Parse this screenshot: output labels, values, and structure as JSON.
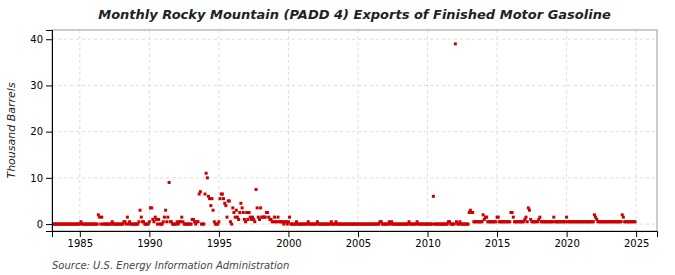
{
  "chart_data": {
    "type": "scatter",
    "title": "Monthly Rocky Mountain (PADD 4) Exports of Finished Motor Gasoline",
    "ylabel": "Thousand Barrels",
    "annotations": [
      "Source: U.S. Energy Information Administration"
    ],
    "color": "#cc0000",
    "marker": "square",
    "grid": true,
    "xlim": [
      1983.0,
      2026.5
    ],
    "ylim": [
      -1.5,
      42
    ],
    "xticks": [
      1985,
      1990,
      1995,
      2000,
      2005,
      2010,
      2015,
      2020,
      2025
    ],
    "yticks": [
      0,
      10,
      20,
      30,
      40
    ],
    "x": [
      1983.0,
      1983.08,
      1983.17,
      1983.25,
      1983.33,
      1983.42,
      1983.5,
      1983.58,
      1983.67,
      1983.75,
      1983.83,
      1983.92,
      1984.0,
      1984.08,
      1984.17,
      1984.25,
      1984.33,
      1984.42,
      1984.5,
      1984.58,
      1984.67,
      1984.75,
      1984.83,
      1984.92,
      1985.0,
      1985.08,
      1985.17,
      1985.25,
      1985.33,
      1985.42,
      1985.5,
      1985.58,
      1985.67,
      1985.75,
      1985.83,
      1985.92,
      1986.0,
      1986.08,
      1986.17,
      1986.25,
      1986.33,
      1986.42,
      1986.5,
      1986.58,
      1986.67,
      1986.75,
      1986.83,
      1986.92,
      1987.0,
      1987.08,
      1987.17,
      1987.25,
      1987.33,
      1987.42,
      1987.5,
      1987.58,
      1987.67,
      1987.75,
      1987.83,
      1987.92,
      1988.0,
      1988.08,
      1988.17,
      1988.25,
      1988.33,
      1988.42,
      1988.5,
      1988.58,
      1988.67,
      1988.75,
      1988.83,
      1988.92,
      1989.0,
      1989.08,
      1989.17,
      1989.25,
      1989.33,
      1989.42,
      1989.5,
      1989.58,
      1989.67,
      1989.75,
      1989.83,
      1989.92,
      1990.0,
      1990.08,
      1990.17,
      1990.25,
      1990.33,
      1990.42,
      1990.5,
      1990.58,
      1990.67,
      1990.75,
      1990.83,
      1990.92,
      1991.0,
      1991.08,
      1991.17,
      1991.25,
      1991.33,
      1991.42,
      1991.5,
      1991.58,
      1991.67,
      1991.75,
      1991.83,
      1991.92,
      1992.0,
      1992.08,
      1992.17,
      1992.25,
      1992.33,
      1992.42,
      1992.5,
      1992.58,
      1992.67,
      1992.75,
      1992.83,
      1992.92,
      1993.0,
      1993.08,
      1993.17,
      1993.25,
      1993.33,
      1993.42,
      1993.5,
      1993.58,
      1993.67,
      1993.75,
      1993.83,
      1993.92,
      1994.0,
      1994.08,
      1994.17,
      1994.25,
      1994.33,
      1994.42,
      1994.5,
      1994.58,
      1994.67,
      1994.75,
      1994.83,
      1994.92,
      1995.0,
      1995.08,
      1995.17,
      1995.25,
      1995.33,
      1995.42,
      1995.5,
      1995.58,
      1995.67,
      1995.75,
      1995.83,
      1995.92,
      1996.0,
      1996.08,
      1996.17,
      1996.25,
      1996.33,
      1996.42,
      1996.5,
      1996.58,
      1996.67,
      1996.75,
      1996.83,
      1996.92,
      1997.0,
      1997.08,
      1997.17,
      1997.25,
      1997.33,
      1997.42,
      1997.5,
      1997.58,
      1997.67,
      1997.75,
      1997.83,
      1997.92,
      1998.0,
      1998.08,
      1998.17,
      1998.25,
      1998.33,
      1998.42,
      1998.5,
      1998.58,
      1998.67,
      1998.75,
      1998.83,
      1998.92,
      1999.0,
      1999.08,
      1999.17,
      1999.25,
      1999.33,
      1999.42,
      1999.5,
      1999.58,
      1999.67,
      1999.75,
      1999.83,
      1999.92,
      2000.0,
      2000.08,
      2000.17,
      2000.25,
      2000.33,
      2000.42,
      2000.5,
      2000.58,
      2000.67,
      2000.75,
      2000.83,
      2000.92,
      2001.0,
      2001.08,
      2001.17,
      2001.25,
      2001.33,
      2001.42,
      2001.5,
      2001.58,
      2001.67,
      2001.75,
      2001.83,
      2001.92,
      2002.0,
      2002.08,
      2002.17,
      2002.25,
      2002.33,
      2002.42,
      2002.5,
      2002.58,
      2002.67,
      2002.75,
      2002.83,
      2002.92,
      2003.0,
      2003.08,
      2003.17,
      2003.25,
      2003.33,
      2003.42,
      2003.5,
      2003.58,
      2003.67,
      2003.75,
      2003.83,
      2003.92,
      2004.0,
      2004.08,
      2004.17,
      2004.25,
      2004.33,
      2004.42,
      2004.5,
      2004.58,
      2004.67,
      2004.75,
      2004.83,
      2004.92,
      2005.0,
      2005.08,
      2005.17,
      2005.25,
      2005.33,
      2005.42,
      2005.5,
      2005.58,
      2005.67,
      2005.75,
      2005.83,
      2005.92,
      2006.0,
      2006.08,
      2006.17,
      2006.25,
      2006.33,
      2006.42,
      2006.5,
      2006.58,
      2006.67,
      2006.75,
      2006.83,
      2006.92,
      2007.0,
      2007.08,
      2007.17,
      2007.25,
      2007.33,
      2007.42,
      2007.5,
      2007.58,
      2007.67,
      2007.75,
      2007.83,
      2007.92,
      2008.0,
      2008.08,
      2008.17,
      2008.25,
      2008.33,
      2008.42,
      2008.5,
      2008.58,
      2008.67,
      2008.75,
      2008.83,
      2008.92,
      2009.0,
      2009.08,
      2009.17,
      2009.25,
      2009.33,
      2009.42,
      2009.5,
      2009.58,
      2009.67,
      2009.75,
      2009.83,
      2009.92,
      2010.0,
      2010.08,
      2010.17,
      2010.25,
      2010.33,
      2010.42,
      2010.5,
      2010.58,
      2010.67,
      2010.75,
      2010.83,
      2010.92,
      2011.0,
      2011.08,
      2011.17,
      2011.25,
      2011.33,
      2011.42,
      2011.5,
      2011.58,
      2011.67,
      2011.75,
      2011.83,
      2011.92,
      2012.0,
      2012.08,
      2012.17,
      2012.25,
      2012.33,
      2012.42,
      2012.5,
      2012.58,
      2012.67,
      2012.75,
      2012.83,
      2012.92,
      2013.0,
      2013.08,
      2013.17,
      2013.25,
      2013.33,
      2013.42,
      2013.5,
      2013.58,
      2013.67,
      2013.75,
      2013.83,
      2013.92,
      2014.0,
      2014.08,
      2014.17,
      2014.25,
      2014.33,
      2014.42,
      2014.5,
      2014.58,
      2014.67,
      2014.75,
      2014.83,
      2014.92,
      2015.0,
      2015.08,
      2015.17,
      2015.25,
      2015.33,
      2015.42,
      2015.5,
      2015.58,
      2015.67,
      2015.75,
      2015.83,
      2015.92,
      2016.0,
      2016.08,
      2016.17,
      2016.25,
      2016.33,
      2016.42,
      2016.5,
      2016.58,
      2016.67,
      2016.75,
      2016.83,
      2016.92,
      2017.0,
      2017.08,
      2017.17,
      2017.25,
      2017.33,
      2017.42,
      2017.5,
      2017.58,
      2017.67,
      2017.75,
      2017.83,
      2017.92,
      2018.0,
      2018.08,
      2018.17,
      2018.25,
      2018.33,
      2018.42,
      2018.5,
      2018.58,
      2018.67,
      2018.75,
      2018.83,
      2018.92,
      2019.0,
      2019.08,
      2019.17,
      2019.25,
      2019.33,
      2019.42,
      2019.5,
      2019.58,
      2019.67,
      2019.75,
      2019.83,
      2019.92,
      2020.0,
      2020.08,
      2020.17,
      2020.25,
      2020.33,
      2020.42,
      2020.5,
      2020.58,
      2020.67,
      2020.75,
      2020.83,
      2020.92,
      2021.0,
      2021.08,
      2021.17,
      2021.25,
      2021.33,
      2021.42,
      2021.5,
      2021.58,
      2021.67,
      2021.75,
      2021.83,
      2021.92,
      2022.0,
      2022.08,
      2022.17,
      2022.25,
      2022.33,
      2022.42,
      2022.5,
      2022.58,
      2022.67,
      2022.75,
      2022.83,
      2022.92,
      2023.0,
      2023.08,
      2023.17,
      2023.25,
      2023.33,
      2023.42,
      2023.5,
      2023.58,
      2023.67,
      2023.75,
      2023.83,
      2023.92,
      2024.0,
      2024.08,
      2024.17,
      2024.25,
      2024.33,
      2024.42,
      2024.5,
      2024.58,
      2024.67,
      2024.75,
      2024.83,
      2024.92
    ],
    "values": [
      0,
      0,
      0,
      0,
      0,
      0,
      0,
      0,
      0,
      0,
      0,
      0,
      0,
      0,
      0,
      0,
      0,
      0,
      0,
      0,
      0,
      0,
      0,
      0,
      0,
      0.5,
      0,
      0,
      0,
      0,
      0,
      0,
      0,
      0,
      0,
      0,
      0,
      0,
      0,
      0,
      2.0,
      1.5,
      0,
      1.5,
      0,
      0,
      0,
      0,
      0,
      0,
      0,
      0,
      0.5,
      0,
      0,
      0,
      0,
      0,
      0,
      0,
      0,
      0,
      0.5,
      0.5,
      0,
      1.5,
      0,
      0.5,
      0,
      0,
      0,
      0,
      0,
      0,
      0,
      0.5,
      3.0,
      1.5,
      0.5,
      0.5,
      0,
      0,
      0,
      0,
      0.5,
      3.5,
      3.5,
      1.0,
      0.5,
      1.5,
      1.0,
      0,
      1.0,
      0,
      0,
      0,
      0.5,
      1.5,
      3.0,
      0.5,
      1.5,
      9.0,
      0.5,
      0.5,
      0,
      0,
      0,
      0,
      0.5,
      0,
      0.5,
      0.5,
      1.5,
      0.5,
      0,
      0,
      0,
      0,
      0,
      0,
      0,
      1.0,
      1.0,
      0.5,
      0,
      0.5,
      0.5,
      6.5,
      7.0,
      0,
      0,
      0,
      6.5,
      11.0,
      10.0,
      6.0,
      5.5,
      4.0,
      5.5,
      3.0,
      0.5,
      0,
      0,
      0,
      0.5,
      5.5,
      6.5,
      6.5,
      5.5,
      4.5,
      4.0,
      1.5,
      5.0,
      5.0,
      0.5,
      0,
      3.5,
      2.5,
      1.5,
      3.0,
      1.5,
      1.0,
      2.5,
      4.5,
      3.5,
      2.5,
      1.0,
      0.5,
      2.5,
      1.0,
      2.5,
      1.5,
      1.0,
      1.5,
      1.0,
      0.5,
      7.5,
      3.5,
      1.5,
      1.0,
      3.5,
      1.5,
      1.5,
      1.5,
      1.5,
      2.5,
      2.5,
      1.5,
      1.0,
      1.0,
      0.5,
      0.5,
      1.5,
      0.5,
      0.5,
      1.5,
      0.5,
      0.5,
      0.5,
      0.5,
      0,
      0.5,
      0.5,
      0,
      0.5,
      1.5,
      0,
      0,
      0,
      0,
      0,
      0.5,
      0,
      0,
      0,
      0,
      0,
      0,
      0,
      0,
      0,
      0.5,
      0,
      0,
      0,
      0,
      0,
      0,
      0,
      0.5,
      0,
      0,
      0,
      0,
      0,
      0,
      0,
      0,
      0,
      0,
      0,
      0.5,
      0,
      0,
      0,
      0.5,
      0,
      0,
      0,
      0,
      0,
      0,
      0,
      0,
      0,
      0,
      0,
      0,
      0,
      0,
      0,
      0,
      0,
      0,
      0,
      0,
      0,
      0,
      0,
      0,
      0,
      0,
      0,
      0,
      0,
      0,
      0,
      0,
      0,
      0,
      0,
      0,
      0,
      0.5,
      0.5,
      0,
      0,
      0,
      0,
      0,
      0,
      0.5,
      0,
      0.5,
      0,
      0,
      0,
      0,
      0,
      0,
      0,
      0,
      0,
      0,
      0,
      0,
      0,
      0,
      0.5,
      0,
      0,
      0,
      0,
      0,
      0,
      0.5,
      0,
      0,
      0,
      0,
      0,
      0,
      0,
      0,
      0,
      0,
      0,
      0,
      0,
      6.0,
      0,
      0,
      0,
      0,
      0,
      0,
      0,
      0,
      0,
      0,
      0,
      0,
      0.5,
      0.5,
      0,
      0,
      0,
      0,
      39.0,
      0.5,
      0,
      0,
      0.5,
      0,
      0,
      0,
      0,
      0,
      0,
      0,
      2.5,
      3.0,
      2.5,
      2.5,
      0.5,
      0.5,
      0.5,
      0.5,
      0.5,
      0.5,
      0.5,
      0.5,
      2.0,
      1.0,
      1.5,
      1.5,
      0.5,
      0.5,
      0.5,
      0.5,
      0.5,
      0.5,
      0.5,
      0.5,
      1.5,
      1.5,
      0.5,
      0.5,
      0.5,
      0.5,
      0.5,
      0.5,
      0.5,
      0.5,
      0.5,
      0.5,
      2.5,
      2.5,
      1.5,
      0.5,
      0.5,
      0.5,
      0.5,
      0.5,
      0.5,
      0.5,
      0.5,
      0.5,
      1.0,
      1.5,
      0.5,
      3.5,
      3.0,
      1.0,
      0.5,
      0.5,
      0.5,
      0.5,
      0.5,
      0.5,
      1.0,
      1.5,
      0.5,
      0.5,
      0.5,
      0.5,
      0.5,
      0.5,
      0.5,
      0.5,
      0.5,
      0.5,
      0.5,
      1.5,
      0.5,
      0.5,
      0.5,
      0.5,
      0.5,
      0.5,
      0.5,
      0.5,
      0.5,
      0.5,
      1.5,
      0.5,
      0.5,
      0.5,
      0.5,
      0.5,
      0.5,
      0.5,
      0.5,
      0.5,
      0.5,
      0.5,
      0.5,
      0.5,
      0.5,
      0.5,
      0.5,
      0.5,
      0.5,
      0.5,
      0.5,
      0.5,
      0.5,
      0.5,
      2.0,
      1.5,
      1.0,
      0.5,
      0.5,
      0.5,
      0.5,
      0.5,
      0.5,
      0.5,
      0.5,
      0.5,
      0.5,
      0.5,
      0.5,
      0.5,
      0.5,
      0.5,
      0.5,
      0.5,
      0.5,
      0.5,
      0.5,
      0.5,
      2.0,
      1.5,
      0.5,
      0.5,
      0.5,
      0.5,
      0.5,
      0.5,
      0.5,
      0.5,
      0.5,
      0.5
    ]
  }
}
